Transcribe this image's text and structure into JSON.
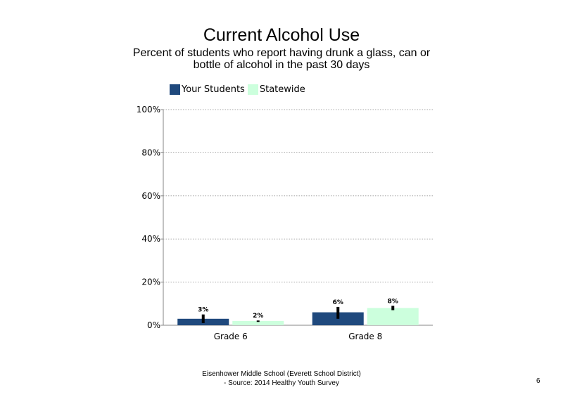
{
  "chart_data": {
    "type": "bar",
    "title": "Current Alcohol Use",
    "subtitle": "Percent of students who report having drunk a glass, can or bottle of alcohol in the past 30 days",
    "categories": [
      "Grade 6",
      "Grade 8"
    ],
    "series": [
      {
        "name": "Your Students",
        "color": "#1f497d",
        "values": [
          3,
          6
        ],
        "labels": [
          "3%",
          "6%"
        ],
        "error": [
          [
            1,
            5
          ],
          [
            3,
            8.5
          ]
        ]
      },
      {
        "name": "Statewide",
        "color": "#ccffdd",
        "values": [
          2,
          8
        ],
        "labels": [
          "2%",
          "8%"
        ],
        "error": [
          [
            1.8,
            2.2
          ],
          [
            7,
            9
          ]
        ]
      }
    ],
    "ylim": [
      0,
      100
    ],
    "yticks": [
      0,
      20,
      40,
      60,
      80,
      100
    ],
    "ytick_labels": [
      "0%",
      "20%",
      "40%",
      "60%",
      "80%",
      "100%"
    ],
    "grid": true,
    "legend_position": "top-left"
  },
  "footer": {
    "line1": "Eisenhower Middle School (Everett School District)",
    "line2": "- Source: 2014 Healthy Youth Survey"
  },
  "page_number": "6"
}
